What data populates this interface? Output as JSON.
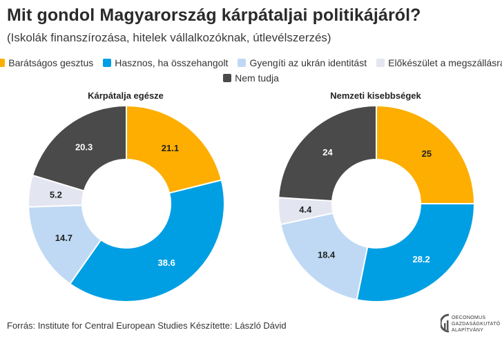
{
  "title": "Mit gondol Magyarország kárpátaljai politikájáról?",
  "subtitle": "(Iskolák finanszírozása, hitelek vállalkozóknak, útlevélszerzés)",
  "legend": [
    {
      "label": "Barátságos gesztus",
      "color": "#FDAE00"
    },
    {
      "label": "Hasznos, ha összehangolt",
      "color": "#009FE3"
    },
    {
      "label": "Gyengíti az ukrán identitást",
      "color": "#BFD9F4"
    },
    {
      "label": "Előkészület a megszállásra",
      "color": "#E3E5F1"
    },
    {
      "label": "Nem tudja",
      "color": "#4A4A4A"
    }
  ],
  "chart_data": [
    {
      "type": "pie",
      "title": "Kárpátalja egésze",
      "categories": [
        "Barátságos gesztus",
        "Hasznos, ha összehangolt",
        "Gyengíti az ukrán identitást",
        "Előkészület a megszállásra",
        "Nem tudja"
      ],
      "values": [
        21.1,
        38.6,
        14.7,
        5.2,
        20.3
      ],
      "labels": [
        "21.1",
        "38.6",
        "14.7",
        "5.2",
        "20.3"
      ]
    },
    {
      "type": "pie",
      "title": "Nemzeti kisebbségek",
      "categories": [
        "Barátságos gesztus",
        "Hasznos, ha összehangolt",
        "Gyengíti az ukrán identitást",
        "Előkészület a megszállásra",
        "Nem tudja"
      ],
      "values": [
        25,
        28.2,
        18.4,
        4.4,
        24
      ],
      "labels": [
        "25",
        "28.2",
        "18.4",
        "4.4",
        "24"
      ]
    }
  ],
  "footer": "Forrás: Institute for Central European Studies Készítette: László Dávid",
  "logo": {
    "line1": "OECONOMUS",
    "line2": "GAZDASÁGKUTATÓ",
    "line3": "ALAPÍTVÁNY"
  }
}
